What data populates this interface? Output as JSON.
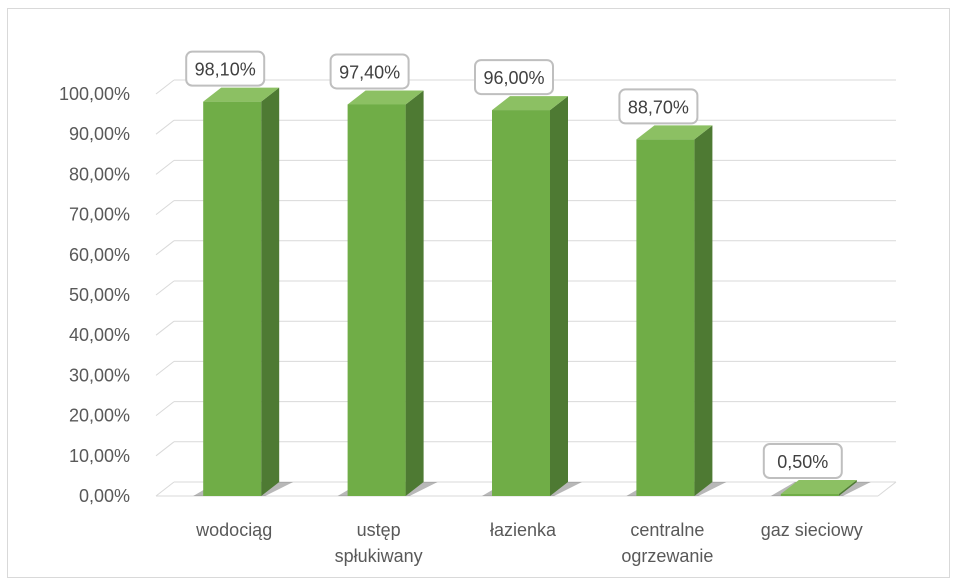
{
  "chart_data": {
    "type": "bar",
    "categories": [
      [
        "wodociąg"
      ],
      [
        "ustęp",
        "spłukiwany"
      ],
      [
        "łazienka"
      ],
      [
        "centralne",
        "ogrzewanie"
      ],
      [
        "gaz sieciowy"
      ]
    ],
    "values": [
      98.1,
      97.4,
      96.0,
      88.7,
      0.5
    ],
    "data_labels": [
      "98,10%",
      "97,40%",
      "96,00%",
      "88,70%",
      "0,50%"
    ],
    "y_ticks": [
      "0,00%",
      "10,00%",
      "20,00%",
      "30,00%",
      "40,00%",
      "50,00%",
      "60,00%",
      "70,00%",
      "80,00%",
      "90,00%",
      "100,00%"
    ],
    "ylim": [
      0,
      100
    ],
    "title": "",
    "xlabel": "",
    "ylabel": "",
    "grid": true,
    "legend": "none",
    "style": "3d-column",
    "colors": {
      "bar_front": "#70ad47",
      "bar_side": "#4e7a33",
      "bar_top": "#8cc063",
      "grid": "#d9d9d9",
      "label_border": "#bfbfbf"
    }
  }
}
